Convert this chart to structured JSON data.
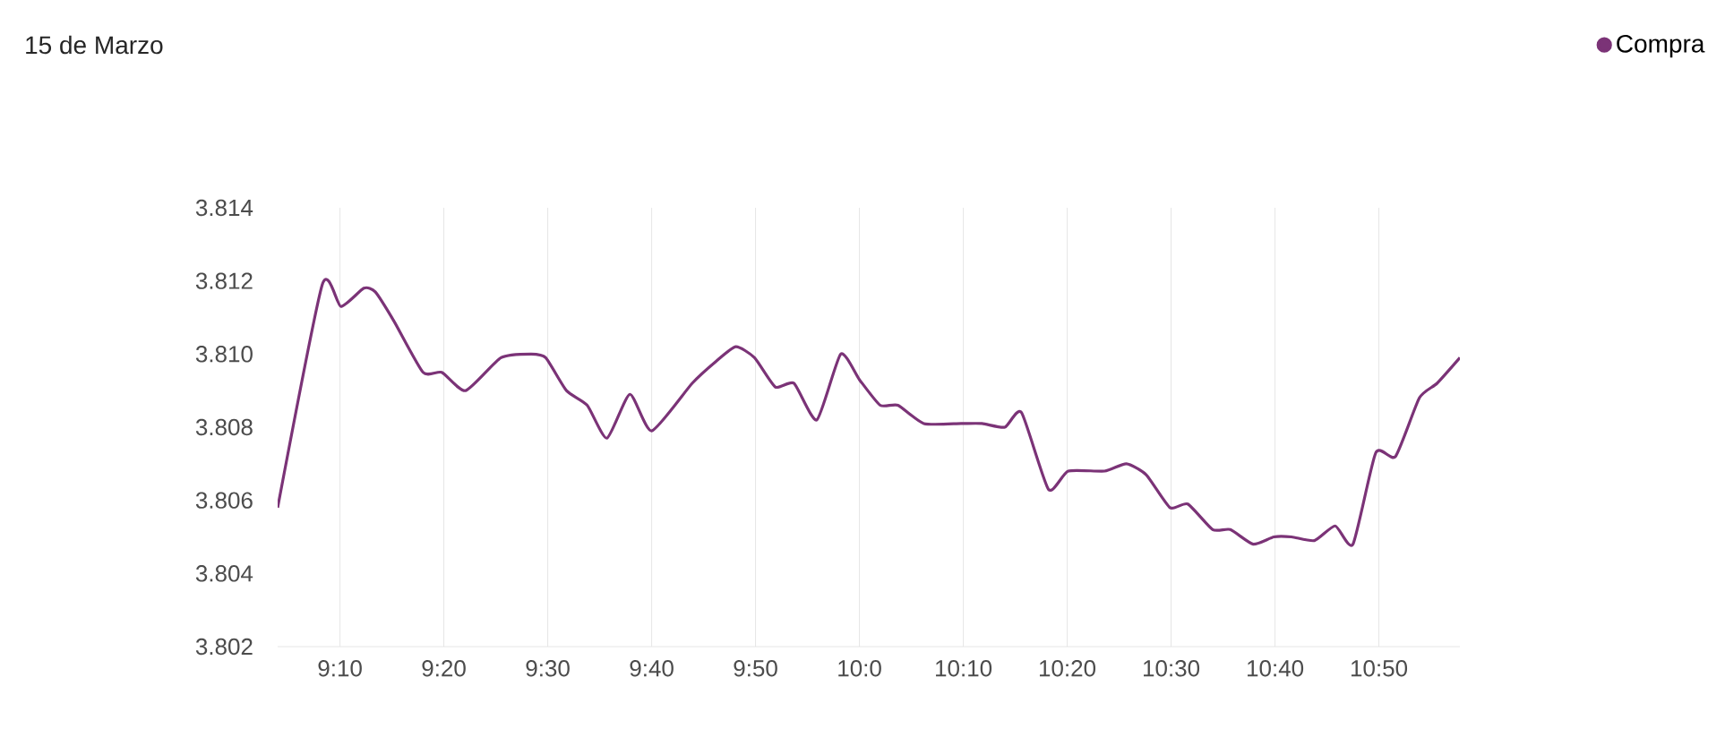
{
  "chart_data": {
    "type": "line",
    "title": "15 de Marzo",
    "x": [
      9.0667,
      9.1383,
      9.1683,
      9.205,
      9.2233,
      9.2533,
      9.3,
      9.33,
      9.3683,
      9.425,
      9.4733,
      9.4967,
      9.53,
      9.5633,
      9.595,
      9.6317,
      9.6667,
      9.7317,
      9.77,
      9.8017,
      9.8317,
      9.865,
      9.895,
      9.9317,
      9.97,
      10.0,
      10.0333,
      10.0617,
      10.1033,
      10.1633,
      10.1967,
      10.2333,
      10.26,
      10.3033,
      10.335,
      10.3933,
      10.4283,
      10.46,
      10.4983,
      10.5267,
      10.5667,
      10.595,
      10.6317,
      10.665,
      10.6933,
      10.73,
      10.7633,
      10.7917,
      10.8283,
      10.86,
      10.8983,
      10.9267,
      10.9633
    ],
    "series": [
      {
        "name": "Compra",
        "color": "#7b3377",
        "values": [
          3.8058,
          3.8119,
          3.8113,
          3.8118,
          3.8117,
          3.8109,
          3.8095,
          3.8095,
          3.809,
          3.8099,
          3.81,
          3.8099,
          3.809,
          3.8086,
          3.8077,
          3.8089,
          3.8079,
          3.8092,
          3.8098,
          3.8102,
          3.8099,
          3.8091,
          3.8092,
          3.8082,
          3.81,
          3.8093,
          3.8086,
          3.8086,
          3.8081,
          3.8081,
          3.8081,
          3.808,
          3.8084,
          3.8063,
          3.8068,
          3.8068,
          3.807,
          3.8067,
          3.8058,
          3.8059,
          3.8052,
          3.8052,
          3.8048,
          3.805,
          3.805,
          3.8049,
          3.8053,
          3.8048,
          3.8073,
          3.8072,
          3.8088,
          3.8092,
          3.8099
        ]
      }
    ],
    "ylim": [
      3.802,
      3.814
    ],
    "xticks": [
      {
        "value": 9.1667,
        "label": "9:10"
      },
      {
        "value": 9.3333,
        "label": "9:20"
      },
      {
        "value": 9.5,
        "label": "9:30"
      },
      {
        "value": 9.6667,
        "label": "9:40"
      },
      {
        "value": 9.8333,
        "label": "9:50"
      },
      {
        "value": 10.0,
        "label": "10:0"
      },
      {
        "value": 10.1667,
        "label": "10:10"
      },
      {
        "value": 10.3333,
        "label": "10:20"
      },
      {
        "value": 10.5,
        "label": "10:30"
      },
      {
        "value": 10.6667,
        "label": "10:40"
      },
      {
        "value": 10.8333,
        "label": "10:50"
      }
    ],
    "xlim": [
      9.0667,
      10.9633
    ],
    "yticks": [
      {
        "value": 3.802,
        "label": "3.802"
      },
      {
        "value": 3.804,
        "label": "3.804"
      },
      {
        "value": 3.806,
        "label": "3.806"
      },
      {
        "value": 3.808,
        "label": "3.808"
      },
      {
        "value": 3.81,
        "label": "3.810"
      },
      {
        "value": 3.812,
        "label": "3.812"
      },
      {
        "value": 3.814,
        "label": "3.814"
      }
    ],
    "grid": "x",
    "legend": "top right"
  }
}
